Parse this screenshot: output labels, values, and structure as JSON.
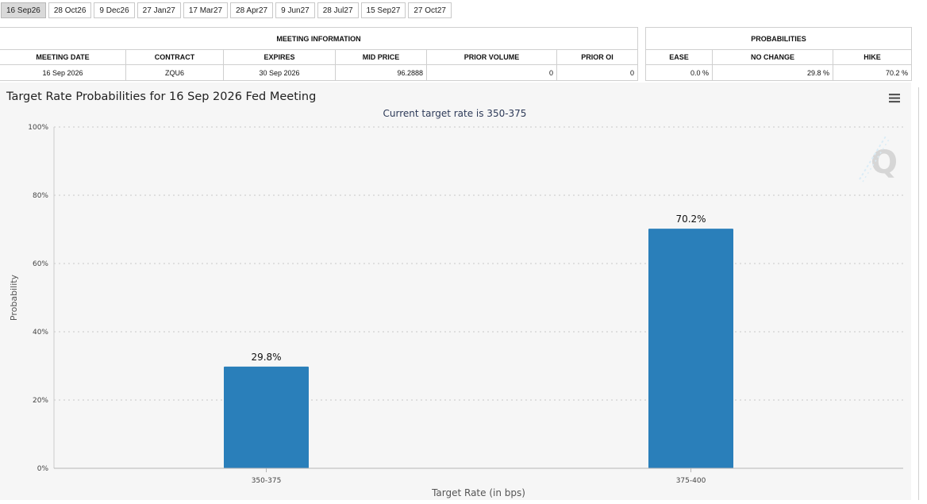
{
  "tabs": [
    "16 Sep26",
    "28 Oct26",
    "9 Dec26",
    "27 Jan27",
    "17 Mar27",
    "28 Apr27",
    "9 Jun27",
    "28 Jul27",
    "15 Sep27",
    "27 Oct27"
  ],
  "active_tab": 0,
  "meeting_info": {
    "title": "MEETING INFORMATION",
    "headers": [
      "MEETING DATE",
      "CONTRACT",
      "EXPIRES",
      "MID PRICE",
      "PRIOR VOLUME",
      "PRIOR OI"
    ],
    "row": [
      "16 Sep 2026",
      "ZQU6",
      "30 Sep 2026",
      "96.2888",
      "0",
      "0"
    ]
  },
  "probabilities": {
    "title": "PROBABILITIES",
    "headers": [
      "EASE",
      "NO CHANGE",
      "HIKE"
    ],
    "row": [
      "0.0 %",
      "29.8 %",
      "70.2 %"
    ]
  },
  "chart_title": "Target Rate Probabilities for 16 Sep 2026 Fed Meeting",
  "menu_icon": "hamburger-menu-icon",
  "watermark_icon": "q-logo-watermark",
  "colors": {
    "bar": "#2a7fba",
    "background": "#f6f6f6",
    "grid": "#c8c8c8",
    "active_tab": "#d9d9d9"
  },
  "chart_data": {
    "type": "bar",
    "title": "Current target rate is 350-375",
    "xlabel": "Target Rate (in bps)",
    "ylabel": "Probability",
    "categories": [
      "350-375",
      "375-400"
    ],
    "values": [
      29.8,
      70.2
    ],
    "data_labels": [
      "29.8%",
      "70.2%"
    ],
    "y_ticks": [
      "0%",
      "20%",
      "40%",
      "60%",
      "80%",
      "100%"
    ],
    "ylim": [
      0,
      100
    ],
    "grid": true,
    "legend": "none"
  }
}
